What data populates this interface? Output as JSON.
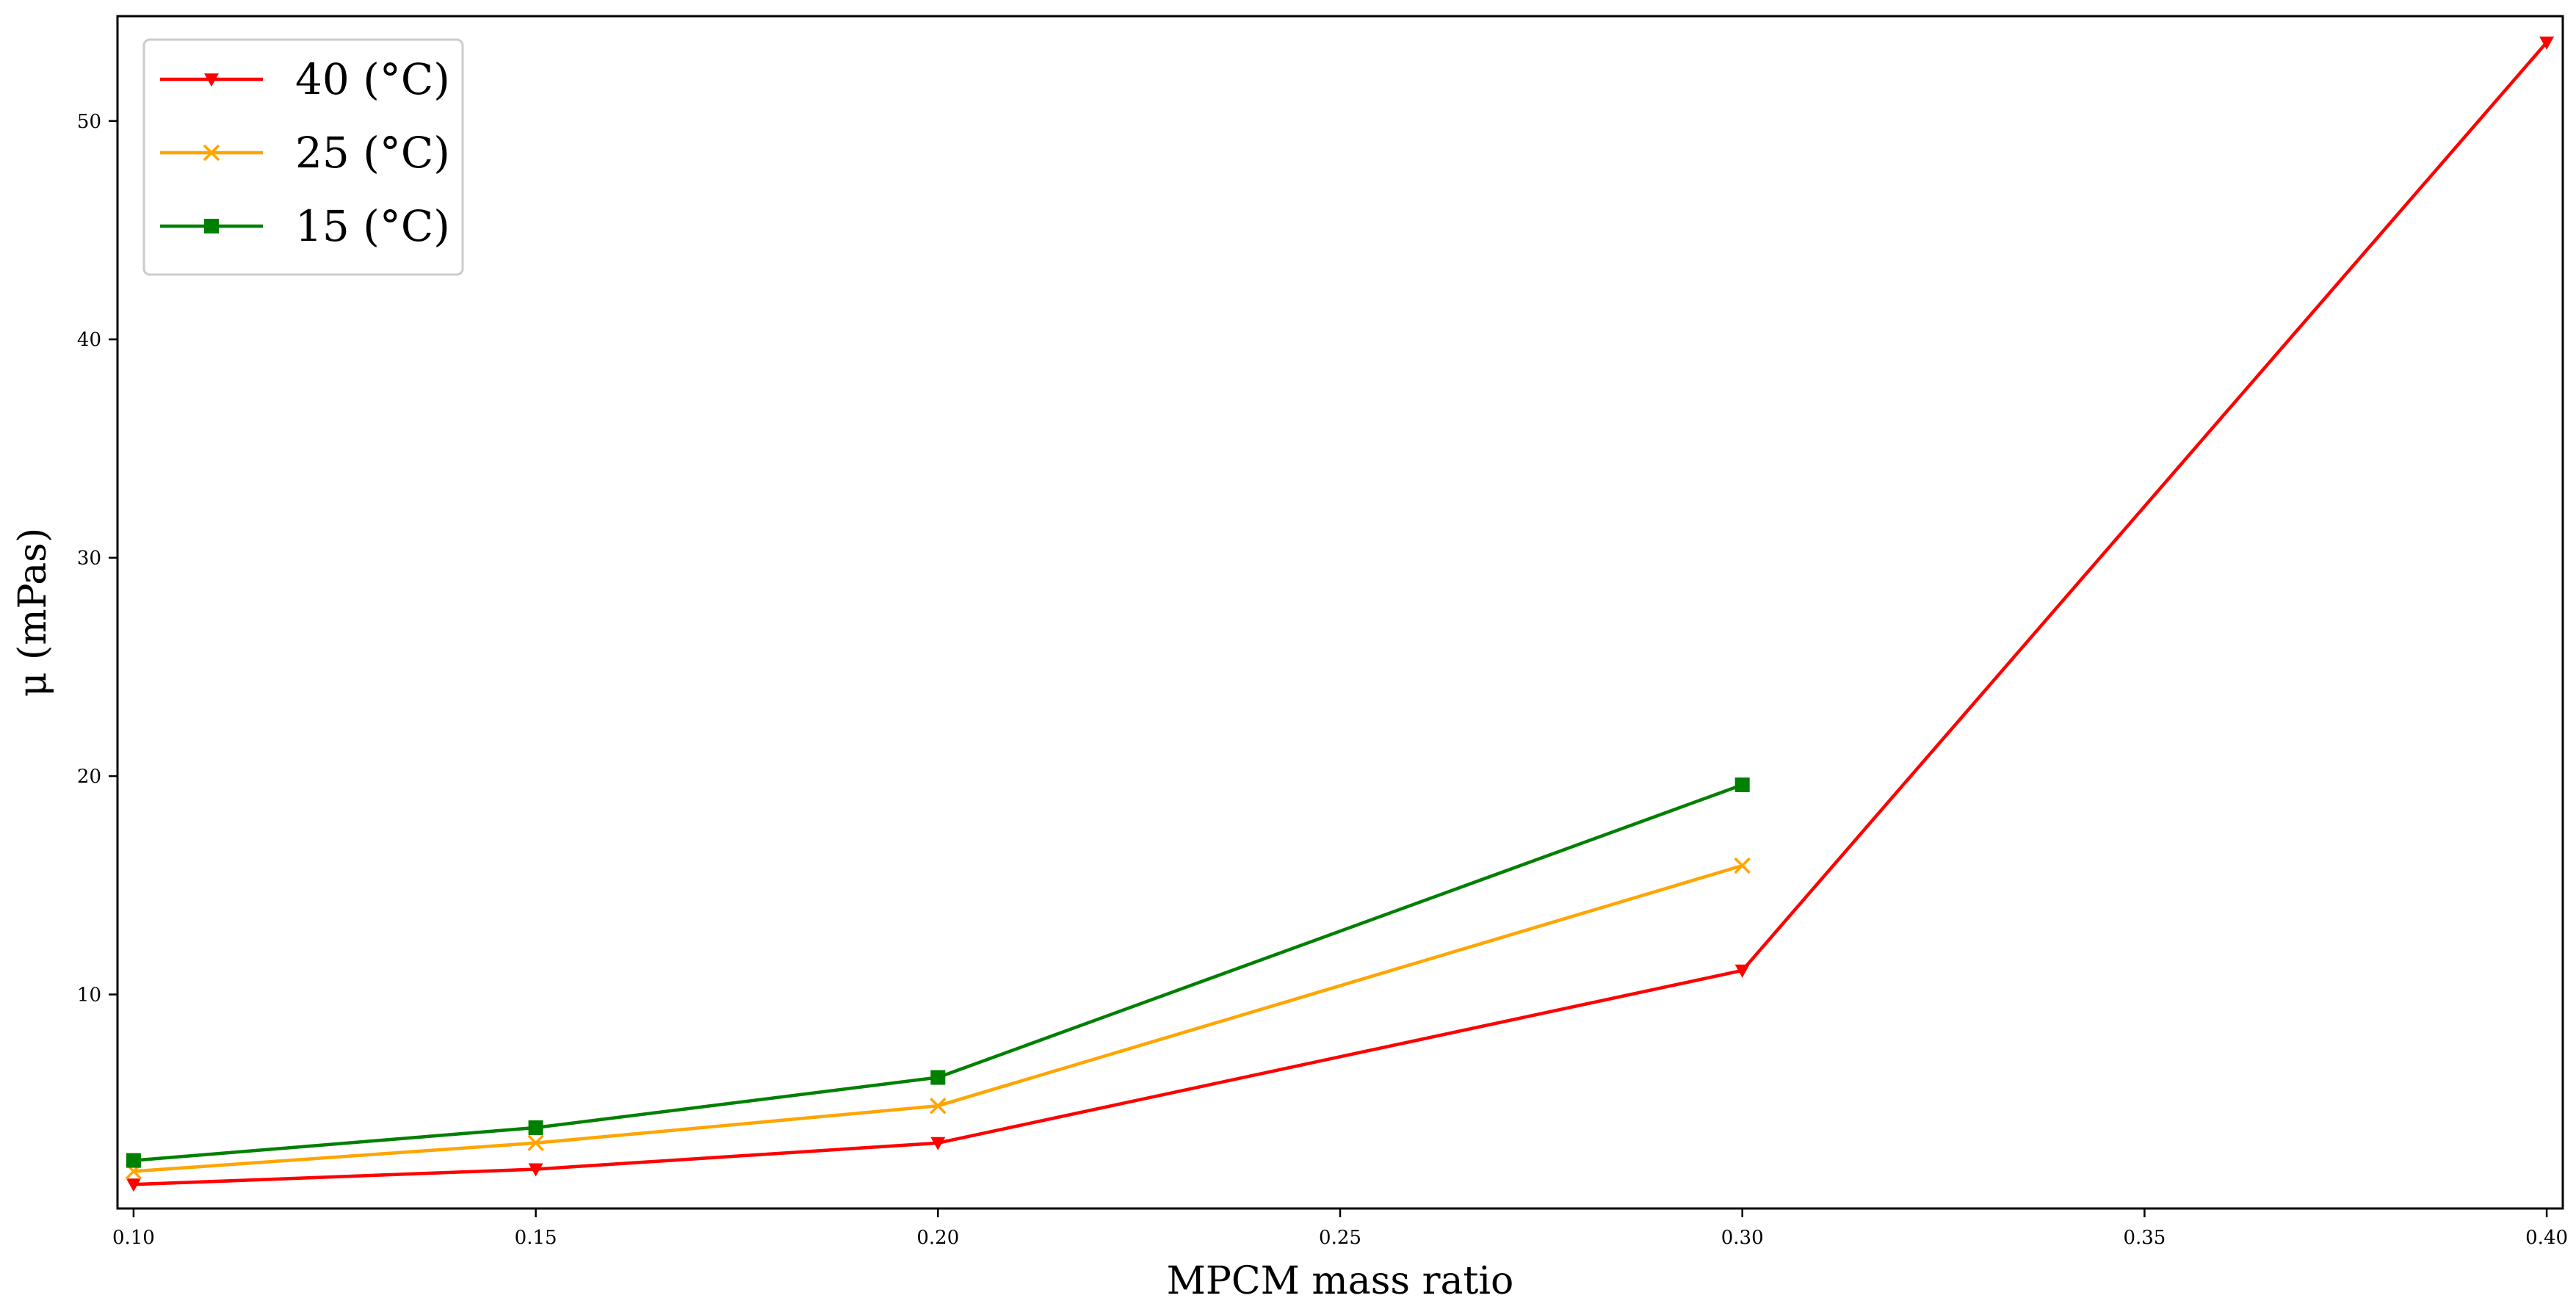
{
  "chart_data": {
    "type": "line",
    "title": "",
    "xlabel": "MPCM mass ratio",
    "ylabel": "μ (mPas)",
    "xlim": [
      0.098,
      0.402
    ],
    "ylim": [
      0.2,
      54.8
    ],
    "xticks": [
      0.1,
      0.15,
      0.2,
      0.25,
      0.3,
      0.35,
      0.4
    ],
    "xtick_labels": [
      "0.10",
      "0.15",
      "0.20",
      "0.25",
      "0.30",
      "0.35",
      "0.40"
    ],
    "yticks": [
      10,
      20,
      30,
      40,
      50
    ],
    "ytick_labels": [
      "10",
      "20",
      "30",
      "40",
      "50"
    ],
    "grid": false,
    "legend_position": "top-left",
    "series": [
      {
        "name": "40 (°C)",
        "color": "#ff0000",
        "marker": "triangle-down",
        "x": [
          0.1,
          0.15,
          0.2,
          0.3,
          0.4
        ],
        "y": [
          1.3,
          2.0,
          3.2,
          11.1,
          53.6
        ]
      },
      {
        "name": "25 (°C)",
        "color": "#ffa500",
        "marker": "x",
        "x": [
          0.1,
          0.15,
          0.2,
          0.3
        ],
        "y": [
          1.9,
          3.2,
          4.9,
          15.9
        ]
      },
      {
        "name": "15 (°C)",
        "color": "#008000",
        "marker": "square",
        "x": [
          0.1,
          0.15,
          0.2,
          0.3
        ],
        "y": [
          2.4,
          3.9,
          6.2,
          19.6
        ]
      }
    ]
  }
}
